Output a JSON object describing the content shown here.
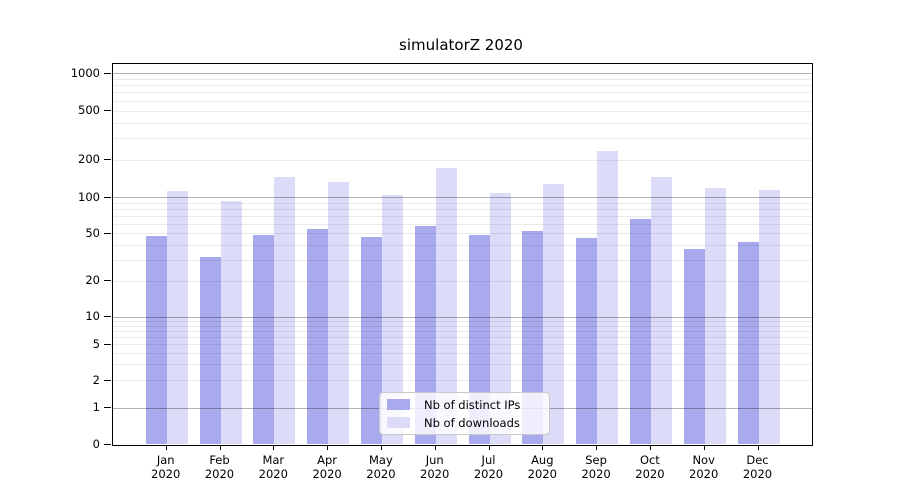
{
  "title": "simulatorZ 2020",
  "legend": {
    "items": [
      {
        "label": "Nb of distinct IPs",
        "color": "#a9a9ee"
      },
      {
        "label": "Nb of downloads",
        "color": "#dcdcf9"
      }
    ]
  },
  "chart_data": {
    "type": "bar",
    "title": "simulatorZ 2020",
    "categories": [
      "Jan 2020",
      "Feb 2020",
      "Mar 2020",
      "Apr 2020",
      "May 2020",
      "Jun 2020",
      "Jul 2020",
      "Aug 2020",
      "Sep 2020",
      "Oct 2020",
      "Nov 2020",
      "Dec 2020"
    ],
    "series": [
      {
        "name": "Nb of distinct IPs",
        "color": "#a9a9ee",
        "values": [
          48,
          32,
          49,
          55,
          47,
          58,
          49,
          53,
          46,
          66,
          37,
          43
        ]
      },
      {
        "name": "Nb of downloads",
        "color": "#dcdcf9",
        "values": [
          114,
          93,
          148,
          135,
          106,
          173,
          110,
          130,
          238,
          146,
          119,
          115
        ]
      }
    ],
    "xlabel": "",
    "ylabel": "",
    "yscale": "log-with-zero-baseline",
    "y_ticks": [
      0,
      1,
      2,
      5,
      10,
      20,
      50,
      100,
      200,
      500,
      1000
    ],
    "ylim": [
      0,
      1000
    ],
    "grid": "on",
    "legend_position": "lower center"
  }
}
